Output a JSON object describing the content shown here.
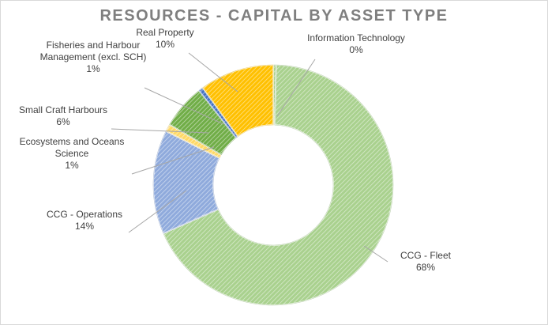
{
  "chart_data": {
    "type": "pie",
    "variant": "donut",
    "title": "RESOURCES - CAPITAL BY ASSET TYPE",
    "slices": [
      {
        "key": "it",
        "name": "Information Technology",
        "label_lines": [
          "Information Technology"
        ],
        "value": 0.4,
        "pct_label": "0%",
        "color": "#a9d18e"
      },
      {
        "key": "fleet",
        "name": "CCG - Fleet",
        "label_lines": [
          "CCG - Fleet"
        ],
        "value": 68,
        "pct_label": "68%",
        "color": "#a9d18e"
      },
      {
        "key": "ops",
        "name": "CCG - Operations",
        "label_lines": [
          "CCG - Operations"
        ],
        "value": 14,
        "pct_label": "14%",
        "color": "#8faadc"
      },
      {
        "key": "eco",
        "name": "Ecosystems and Oceans Science",
        "label_lines": [
          "Ecosystems and Oceans",
          "Science"
        ],
        "value": 1,
        "pct_label": "1%",
        "color": "#ffd966"
      },
      {
        "key": "sch",
        "name": "Small Craft Harbours",
        "label_lines": [
          "Small Craft Harbours"
        ],
        "value": 6,
        "pct_label": "6%",
        "color": "#70ad47"
      },
      {
        "key": "fhm",
        "name": "Fisheries and Harbour Management (excl. SCH)",
        "label_lines": [
          "Fisheries and Harbour",
          "Management (excl. SCH)"
        ],
        "value": 0.6,
        "pct_label": "1%",
        "color": "#4472c4"
      },
      {
        "key": "rp",
        "name": "Real Property",
        "label_lines": [
          "Real Property"
        ],
        "value": 10,
        "pct_label": "10%",
        "color": "#ffc000"
      }
    ]
  }
}
